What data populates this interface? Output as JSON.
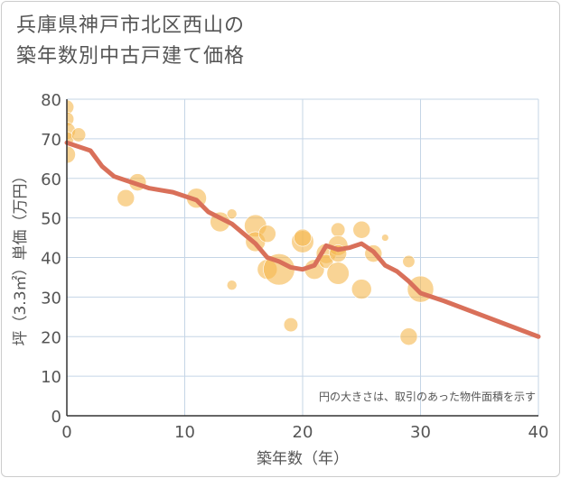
{
  "page": {
    "title_line1": "兵庫県神戸市北区西山の",
    "title_line2": "築年数別中古戸建て価格"
  },
  "chart_data": {
    "type": "scatter",
    "title": "兵庫県神戸市北区西山の築年数別中古戸建て価格",
    "xlabel": "築年数（年）",
    "ylabel": "坪（3.3㎡）単価（万円）",
    "xlim": [
      0,
      40
    ],
    "ylim": [
      0,
      80
    ],
    "xticks": [
      0,
      10,
      20,
      30,
      40
    ],
    "yticks": [
      0,
      10,
      20,
      30,
      40,
      50,
      60,
      70,
      80
    ],
    "grid": true,
    "annotation": "円の大きさは、取引のあった物件面積を示す",
    "colors": {
      "bubble": "#f5b74e",
      "line": "#d9705a",
      "grid": "#c5d5e6",
      "axis_text": "#555555"
    },
    "bubbles": [
      {
        "x": 0,
        "y": 78,
        "size": 2
      },
      {
        "x": 0,
        "y": 75,
        "size": 2
      },
      {
        "x": 0,
        "y": 72,
        "size": 3
      },
      {
        "x": 0,
        "y": 70,
        "size": 2
      },
      {
        "x": 0,
        "y": 66,
        "size": 3
      },
      {
        "x": 1,
        "y": 71,
        "size": 2
      },
      {
        "x": 5,
        "y": 55,
        "size": 3
      },
      {
        "x": 6,
        "y": 59,
        "size": 3
      },
      {
        "x": 11,
        "y": 55,
        "size": 4
      },
      {
        "x": 13,
        "y": 49,
        "size": 4
      },
      {
        "x": 14,
        "y": 51,
        "size": 1
      },
      {
        "x": 14,
        "y": 33,
        "size": 1
      },
      {
        "x": 16,
        "y": 48,
        "size": 5
      },
      {
        "x": 16,
        "y": 44,
        "size": 4
      },
      {
        "x": 17,
        "y": 46,
        "size": 3
      },
      {
        "x": 17,
        "y": 37,
        "size": 4
      },
      {
        "x": 18,
        "y": 37,
        "size": 10
      },
      {
        "x": 19,
        "y": 23,
        "size": 2
      },
      {
        "x": 20,
        "y": 44,
        "size": 5
      },
      {
        "x": 20,
        "y": 45,
        "size": 3
      },
      {
        "x": 21,
        "y": 37,
        "size": 4
      },
      {
        "x": 22,
        "y": 41,
        "size": 4
      },
      {
        "x": 22,
        "y": 39,
        "size": 2
      },
      {
        "x": 23,
        "y": 47,
        "size": 2
      },
      {
        "x": 23,
        "y": 43,
        "size": 4
      },
      {
        "x": 23,
        "y": 41,
        "size": 3
      },
      {
        "x": 23,
        "y": 36,
        "size": 5
      },
      {
        "x": 25,
        "y": 47,
        "size": 3
      },
      {
        "x": 25,
        "y": 32,
        "size": 4
      },
      {
        "x": 26,
        "y": 41,
        "size": 3
      },
      {
        "x": 27,
        "y": 45,
        "size": 0.5
      },
      {
        "x": 29,
        "y": 39,
        "size": 1.5
      },
      {
        "x": 29,
        "y": 20,
        "size": 3
      },
      {
        "x": 30,
        "y": 32,
        "size": 7
      }
    ],
    "trend_line": {
      "x": [
        0,
        2,
        3,
        4,
        5,
        6,
        7,
        8,
        9,
        10,
        11,
        12,
        13,
        14,
        15,
        16,
        17,
        18,
        19,
        20,
        21,
        22,
        23,
        24,
        25,
        26,
        27,
        28,
        29,
        30,
        31,
        32,
        40
      ],
      "y": [
        69,
        67,
        63,
        60.5,
        59.5,
        58.5,
        57.5,
        57,
        56.5,
        55.5,
        54.5,
        51.5,
        50,
        48.5,
        46,
        43.5,
        40,
        39,
        37.5,
        37,
        38,
        43,
        42,
        42.5,
        43.5,
        41.5,
        38,
        36.5,
        34,
        31,
        30,
        29,
        20
      ]
    }
  }
}
